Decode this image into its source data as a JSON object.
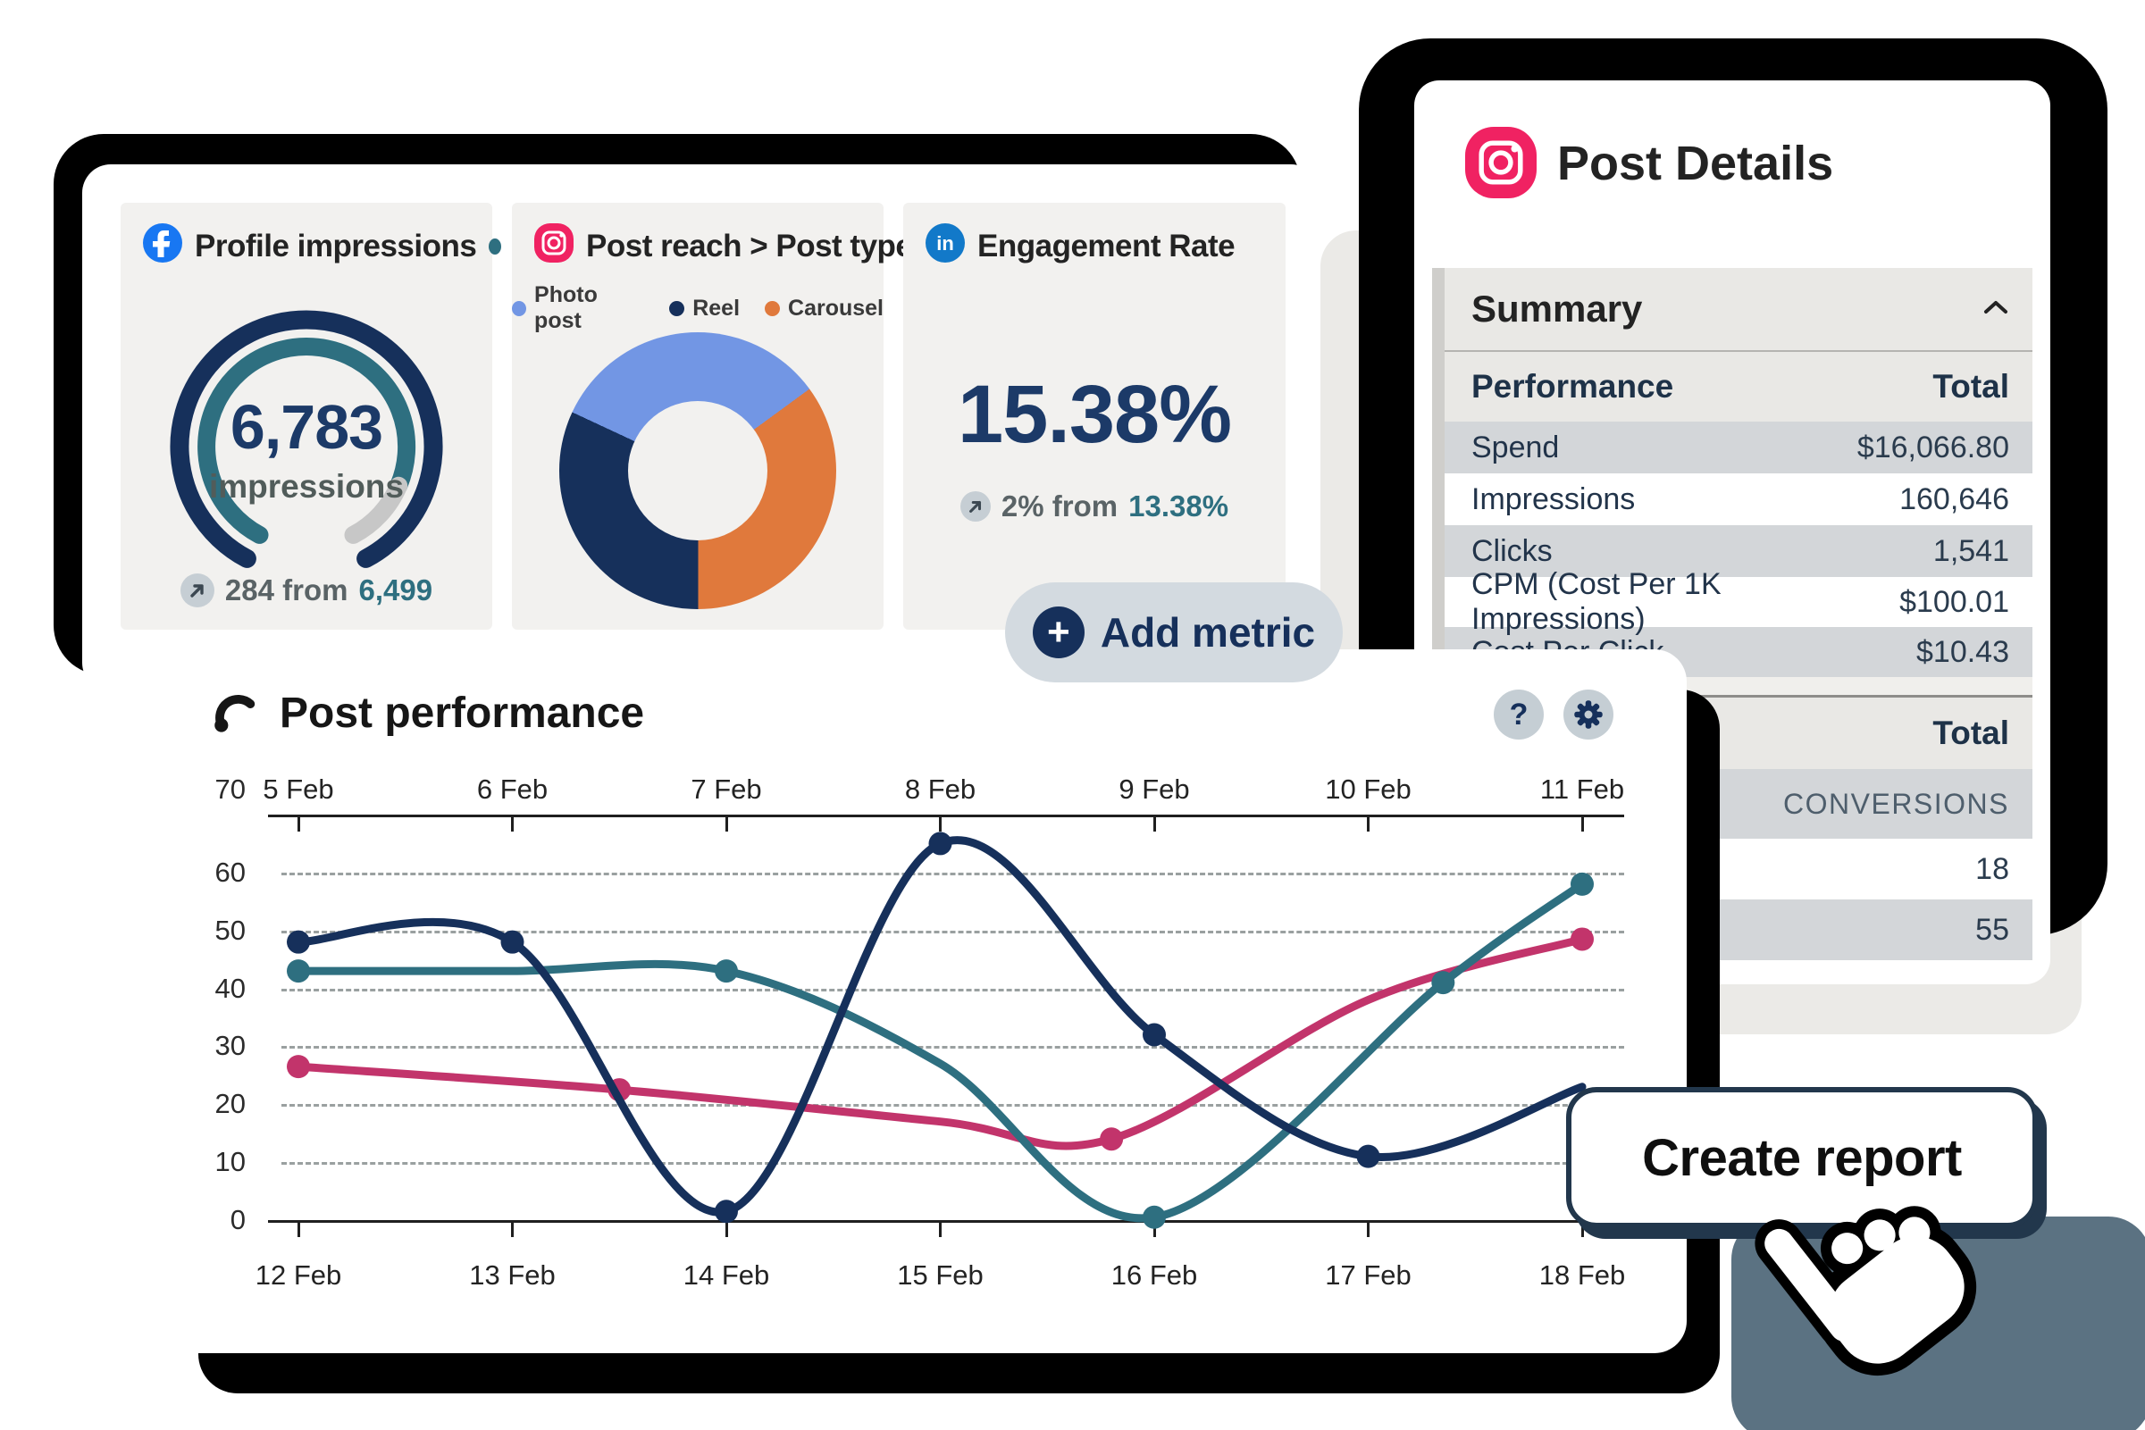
{
  "icons": {
    "plus": "+",
    "help": "?",
    "linkedin_text": "in"
  },
  "tiles": {
    "profile_impressions": {
      "title": "Profile impressions",
      "value": "6,783",
      "unit": "impressions",
      "delta_label": "284 from",
      "delta_value": "6,499"
    },
    "post_reach": {
      "title": "Post reach > Post type",
      "legend": [
        {
          "label": "Photo post",
          "color": "#7296e4"
        },
        {
          "label": "Reel",
          "color": "#16305b"
        },
        {
          "label": "Carousel",
          "color": "#e0793c"
        }
      ]
    },
    "engagement": {
      "title": "Engagement Rate",
      "value": "15.38%",
      "delta_label": "2% from",
      "delta_value": "13.38%"
    }
  },
  "add_metric_label": "Add metric",
  "post_details": {
    "title": "Post Details",
    "summary_label": "Summary",
    "table1": {
      "header": [
        "Performance",
        "Total"
      ],
      "rows": [
        [
          "Spend",
          "$16,066.80"
        ],
        [
          "Impressions",
          "160,646"
        ],
        [
          "Clicks",
          "1,541"
        ],
        [
          "CPM (Cost Per 1K Impressions)",
          "$100.01"
        ],
        [
          "Cost Per Click",
          "$10.43"
        ]
      ]
    },
    "table2": {
      "header_right": "Total",
      "rows": [
        "CONVERSIONS",
        "18",
        "55"
      ]
    }
  },
  "post_performance_title": "Post performance",
  "create_report_label": "Create report",
  "colors": {
    "navy": "#16305b",
    "teal": "#2e6f80",
    "pink": "#c2346b",
    "light_blue": "#7296e4",
    "orange": "#e0793c",
    "facebook": "#1877f2",
    "instagram": "#f02262",
    "linkedin": "#1279c9",
    "gauge_rest": "#c7c7c7"
  },
  "chart_data": [
    {
      "type": "line",
      "title": "Post performance",
      "x_top_labels": [
        "5 Feb",
        "6 Feb",
        "7 Feb",
        "8 Feb",
        "9 Feb",
        "10 Feb",
        "11 Feb"
      ],
      "x_bottom_labels": [
        "12 Feb",
        "13 Feb",
        "14 Feb",
        "15 Feb",
        "16 Feb",
        "17 Feb",
        "18 Feb"
      ],
      "ylim": [
        0,
        70
      ],
      "yticks": [
        0,
        10,
        20,
        30,
        40,
        50,
        60,
        70
      ],
      "grid": "dashed horizontal",
      "legend_position": "none",
      "series": [
        {
          "name": "series-pink",
          "color": "#c2346b",
          "points": [
            [
              0,
              26.5,
              1
            ],
            [
              1.5,
              22.5,
              1
            ],
            [
              3,
              17,
              0
            ],
            [
              3.8,
              14,
              1
            ],
            [
              5,
              38,
              0
            ],
            [
              6,
              48.5,
              1
            ]
          ]
        },
        {
          "name": "series-teal",
          "color": "#2e6f80",
          "points": [
            [
              0,
              43,
              1
            ],
            [
              1,
              43,
              0
            ],
            [
              2,
              43,
              1
            ],
            [
              3,
              27,
              0
            ],
            [
              4,
              0.5,
              1
            ],
            [
              5.35,
              41,
              1
            ],
            [
              6,
              58,
              1
            ]
          ]
        },
        {
          "name": "series-navy",
          "color": "#16305b",
          "points": [
            [
              0,
              48,
              1
            ],
            [
              1,
              48,
              1
            ],
            [
              2,
              1.5,
              1
            ],
            [
              3,
              65,
              1
            ],
            [
              4,
              32,
              1
            ],
            [
              5,
              11,
              1
            ],
            [
              6,
              23,
              0
            ]
          ]
        }
      ]
    },
    {
      "type": "pie",
      "title": "Post reach > Post type",
      "donut_hole": 0.5,
      "start_angle_deg": 295,
      "slices": [
        {
          "label": "Photo post",
          "value": 33,
          "color": "#7296e4"
        },
        {
          "label": "Carousel",
          "value": 35,
          "color": "#e0793c"
        },
        {
          "label": "Reel",
          "value": 32,
          "color": "#16305b"
        }
      ]
    },
    {
      "type": "gauge",
      "title": "Profile impressions",
      "value": 6783,
      "unit": "impressions",
      "delta": 284,
      "previous": 6499,
      "progress": 0.88
    }
  ]
}
